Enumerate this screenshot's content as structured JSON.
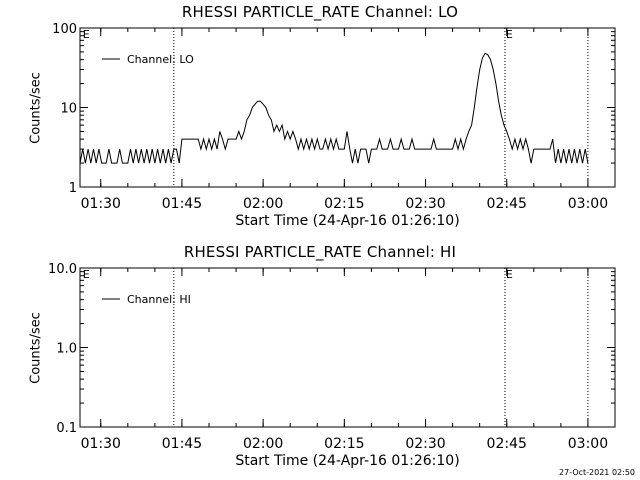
{
  "chart_data": [
    {
      "type": "line",
      "title": "RHESSI PARTICLE_RATE Channel: LO",
      "xlabel": "Start Time (24-Apr-16 01:26:10)",
      "ylabel": "Counts/sec",
      "y_scale": "log",
      "ylim": [
        1,
        100
      ],
      "xlim": [
        "01:26:10",
        "03:05:00"
      ],
      "y_ticks": [
        "1",
        "10",
        "100"
      ],
      "x_ticks": [
        "01:30",
        "01:45",
        "02:00",
        "02:15",
        "02:30",
        "02:45",
        "03:00"
      ],
      "grid": false,
      "legend_position": "top-left",
      "vertical_markers": [
        "01:43:30",
        "02:44:40",
        "03:00:00"
      ],
      "marker_labels": [
        {
          "text": "E",
          "time": "01:26:40"
        },
        {
          "text": "E",
          "time": "02:44:50"
        }
      ],
      "series": [
        {
          "name": "Channel: LO",
          "points": [
            [
              "01:26:10",
              2
            ],
            [
              "01:26:40",
              3
            ],
            [
              "01:27:10",
              2
            ],
            [
              "01:27:40",
              3
            ],
            [
              "01:28:10",
              2
            ],
            [
              "01:28:40",
              3
            ],
            [
              "01:29:10",
              2
            ],
            [
              "01:29:40",
              3
            ],
            [
              "01:30:10",
              2
            ],
            [
              "01:31:00",
              2
            ],
            [
              "01:31:30",
              3
            ],
            [
              "01:32:00",
              2
            ],
            [
              "01:33:00",
              2
            ],
            [
              "01:33:30",
              3
            ],
            [
              "01:34:00",
              2
            ],
            [
              "01:35:00",
              2
            ],
            [
              "01:35:30",
              3
            ],
            [
              "01:36:00",
              2
            ],
            [
              "01:36:30",
              3
            ],
            [
              "01:37:00",
              2
            ],
            [
              "01:37:30",
              3
            ],
            [
              "01:38:00",
              2
            ],
            [
              "01:38:30",
              3
            ],
            [
              "01:39:00",
              2
            ],
            [
              "01:39:30",
              3
            ],
            [
              "01:40:00",
              2
            ],
            [
              "01:40:30",
              3
            ],
            [
              "01:41:00",
              2
            ],
            [
              "01:41:30",
              3
            ],
            [
              "01:42:00",
              2
            ],
            [
              "01:42:30",
              3
            ],
            [
              "01:43:00",
              2
            ],
            [
              "01:43:30",
              3
            ],
            [
              "01:44:00",
              3
            ],
            [
              "01:44:30",
              2
            ],
            [
              "01:45:00",
              4
            ],
            [
              "01:46:00",
              4
            ],
            [
              "01:47:00",
              4
            ],
            [
              "01:48:00",
              4
            ],
            [
              "01:48:30",
              3
            ],
            [
              "01:49:00",
              4
            ],
            [
              "01:49:30",
              3
            ],
            [
              "01:50:00",
              4
            ],
            [
              "01:50:30",
              3
            ],
            [
              "01:51:00",
              4
            ],
            [
              "01:51:30",
              3
            ],
            [
              "01:52:00",
              5
            ],
            [
              "01:52:30",
              4
            ],
            [
              "01:53:00",
              3
            ],
            [
              "01:53:30",
              4
            ],
            [
              "01:54:00",
              4
            ],
            [
              "01:55:00",
              4
            ],
            [
              "01:55:30",
              5
            ],
            [
              "01:56:00",
              4
            ],
            [
              "01:56:30",
              5
            ],
            [
              "01:57:00",
              7
            ],
            [
              "01:57:30",
              8
            ],
            [
              "01:58:00",
              10
            ],
            [
              "01:58:30",
              11
            ],
            [
              "01:59:00",
              12
            ],
            [
              "01:59:30",
              12
            ],
            [
              "02:00:00",
              11
            ],
            [
              "02:00:30",
              10
            ],
            [
              "02:01:00",
              8
            ],
            [
              "02:01:30",
              7
            ],
            [
              "02:02:00",
              5
            ],
            [
              "02:02:30",
              6
            ],
            [
              "02:03:00",
              5
            ],
            [
              "02:03:30",
              6
            ],
            [
              "02:04:00",
              4
            ],
            [
              "02:04:30",
              5
            ],
            [
              "02:05:00",
              4
            ],
            [
              "02:05:30",
              5
            ],
            [
              "02:06:00",
              4
            ],
            [
              "02:06:30",
              3
            ],
            [
              "02:07:00",
              4
            ],
            [
              "02:07:30",
              3
            ],
            [
              "02:08:00",
              4
            ],
            [
              "02:08:30",
              3
            ],
            [
              "02:09:00",
              4
            ],
            [
              "02:09:30",
              3
            ],
            [
              "02:10:00",
              4
            ],
            [
              "02:10:30",
              3
            ],
            [
              "02:11:00",
              3
            ],
            [
              "02:11:30",
              4
            ],
            [
              "02:12:00",
              3
            ],
            [
              "02:12:30",
              4
            ],
            [
              "02:13:00",
              3
            ],
            [
              "02:13:30",
              4
            ],
            [
              "02:14:00",
              3
            ],
            [
              "02:15:00",
              3
            ],
            [
              "02:15:30",
              5
            ],
            [
              "02:16:00",
              3
            ],
            [
              "02:16:30",
              2
            ],
            [
              "02:17:00",
              3
            ],
            [
              "02:17:30",
              2
            ],
            [
              "02:18:00",
              3
            ],
            [
              "02:19:00",
              3
            ],
            [
              "02:19:30",
              2
            ],
            [
              "02:20:00",
              3
            ],
            [
              "02:21:00",
              3
            ],
            [
              "02:21:30",
              4
            ],
            [
              "02:22:00",
              3
            ],
            [
              "02:23:00",
              3
            ],
            [
              "02:23:30",
              4
            ],
            [
              "02:24:00",
              3
            ],
            [
              "02:25:00",
              3
            ],
            [
              "02:25:30",
              4
            ],
            [
              "02:26:00",
              3
            ],
            [
              "02:27:00",
              3
            ],
            [
              "02:27:30",
              4
            ],
            [
              "02:28:00",
              3
            ],
            [
              "02:29:00",
              3
            ],
            [
              "02:30:00",
              3
            ],
            [
              "02:31:00",
              3
            ],
            [
              "02:31:30",
              4
            ],
            [
              "02:32:00",
              3
            ],
            [
              "02:33:00",
              3
            ],
            [
              "02:34:00",
              3
            ],
            [
              "02:35:00",
              3
            ],
            [
              "02:35:30",
              4
            ],
            [
              "02:36:00",
              3
            ],
            [
              "02:36:30",
              4
            ],
            [
              "02:37:00",
              3
            ],
            [
              "02:37:30",
              4
            ],
            [
              "02:38:00",
              5
            ],
            [
              "02:38:30",
              6
            ],
            [
              "02:39:00",
              10
            ],
            [
              "02:39:30",
              18
            ],
            [
              "02:40:00",
              30
            ],
            [
              "02:40:30",
              42
            ],
            [
              "02:41:00",
              48
            ],
            [
              "02:41:30",
              46
            ],
            [
              "02:42:00",
              40
            ],
            [
              "02:42:30",
              30
            ],
            [
              "02:43:00",
              20
            ],
            [
              "02:43:30",
              12
            ],
            [
              "02:44:00",
              8
            ],
            [
              "02:44:30",
              6
            ],
            [
              "02:45:00",
              5
            ],
            [
              "02:45:30",
              4
            ],
            [
              "02:46:00",
              3
            ],
            [
              "02:46:30",
              4
            ],
            [
              "02:47:00",
              3
            ],
            [
              "02:47:30",
              4
            ],
            [
              "02:48:00",
              3
            ],
            [
              "02:48:30",
              4
            ],
            [
              "02:49:00",
              3
            ],
            [
              "02:49:30",
              2
            ],
            [
              "02:50:00",
              3
            ],
            [
              "02:51:00",
              3
            ],
            [
              "02:52:00",
              3
            ],
            [
              "02:53:00",
              3
            ],
            [
              "02:53:30",
              4
            ],
            [
              "02:54:00",
              2
            ],
            [
              "02:54:30",
              3
            ],
            [
              "02:55:00",
              2
            ],
            [
              "02:55:30",
              3
            ],
            [
              "02:56:00",
              2
            ],
            [
              "02:56:30",
              3
            ],
            [
              "02:57:00",
              2
            ],
            [
              "02:57:30",
              3
            ],
            [
              "02:58:00",
              2
            ],
            [
              "02:58:30",
              3
            ],
            [
              "02:59:00",
              2
            ],
            [
              "02:59:30",
              3
            ],
            [
              "03:00:00",
              2
            ]
          ]
        }
      ]
    },
    {
      "type": "line",
      "title": "RHESSI PARTICLE_RATE Channel: HI",
      "xlabel": "Start Time (24-Apr-16 01:26:10)",
      "ylabel": "Counts/sec",
      "y_scale": "log",
      "ylim": [
        0.1,
        10
      ],
      "xlim": [
        "01:26:10",
        "03:05:00"
      ],
      "y_ticks": [
        "0.1",
        "1.0",
        "10.0"
      ],
      "x_ticks": [
        "01:30",
        "01:45",
        "02:00",
        "02:15",
        "02:30",
        "02:45",
        "03:00"
      ],
      "grid": false,
      "legend_position": "top-left",
      "vertical_markers": [
        "01:43:30",
        "02:44:40",
        "03:00:00"
      ],
      "marker_labels": [
        {
          "text": "E",
          "time": "01:26:40"
        },
        {
          "text": "E",
          "time": "02:44:50"
        }
      ],
      "series": [
        {
          "name": "Channel: HI",
          "points": []
        }
      ]
    }
  ],
  "footer": {
    "timestamp": "27-Oct-2021 02:50"
  }
}
